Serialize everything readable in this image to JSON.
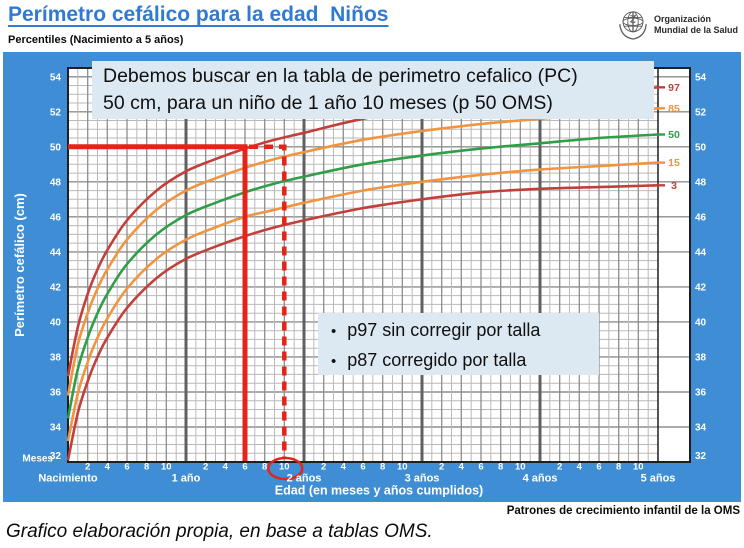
{
  "page": {
    "title": "Perímetro cefálico para la edad  Niños",
    "subtitle": "Percentiles (Nacimiento a 5 años)"
  },
  "who": {
    "line1": "Organización",
    "line2": "Mundial de la Salud"
  },
  "boxes": {
    "main": {
      "line1": "Debemos buscar en la tabla de perimetro cefalico (PC)",
      "line2": "50 cm, para un niño de 1 año 10 meses (p 50 OMS)"
    },
    "bullets": {
      "items": [
        "p97 sin corregir por talla",
        "p87 corregido por talla"
      ]
    }
  },
  "footer": {
    "right": "Patrones de crecimiento infantil de la OMS",
    "left": "Grafico elaboración propia, en base a tablas OMS."
  },
  "chart_data": {
    "type": "line",
    "title": "Perímetro cefálico para la edad - Niños - Percentiles (Nacimiento a 5 años)",
    "xlabel": "Edad (en meses y años cumplidos)",
    "ylabel": "Perímetro cefálico (cm)",
    "x_unit_label": "Meses",
    "xlim_months": [
      0,
      60
    ],
    "ylim": [
      32,
      54.5
    ],
    "y_ticks": [
      54,
      52,
      50,
      48,
      46,
      44,
      42,
      40,
      38,
      36,
      34,
      32
    ],
    "month_tick_labels": [
      2,
      4,
      6,
      8,
      10
    ],
    "year_labels": [
      "Nacimiento",
      "1 año",
      "2 años",
      "3 años",
      "4 años",
      "5 años"
    ],
    "grid": "on",
    "legend_position": "right-strip",
    "months": [
      0,
      1,
      2,
      3,
      4,
      6,
      9,
      12,
      15,
      18,
      21,
      24,
      30,
      36,
      42,
      48,
      54,
      60
    ],
    "series": [
      {
        "name": "97",
        "color": "#c2403a",
        "values": [
          36.9,
          39.7,
          41.6,
          43.0,
          44.1,
          45.8,
          47.5,
          48.6,
          49.3,
          49.9,
          50.4,
          50.8,
          51.6,
          52.1,
          52.5,
          52.8,
          53.1,
          53.4
        ]
      },
      {
        "name": "85",
        "color": "#f0943f",
        "values": [
          35.8,
          38.7,
          40.5,
          41.9,
          43.0,
          44.7,
          46.4,
          47.5,
          48.2,
          48.8,
          49.3,
          49.7,
          50.4,
          50.9,
          51.3,
          51.6,
          51.9,
          52.2
        ]
      },
      {
        "name": "50",
        "color": "#2f9e47",
        "values": [
          34.5,
          37.3,
          39.1,
          40.5,
          41.6,
          43.3,
          45.0,
          46.1,
          46.8,
          47.4,
          47.9,
          48.3,
          49.0,
          49.5,
          49.9,
          50.2,
          50.5,
          50.7
        ]
      },
      {
        "name": "15",
        "color": "#f0943f",
        "values": [
          33.2,
          35.9,
          37.7,
          39.1,
          40.2,
          41.9,
          43.6,
          44.7,
          45.4,
          46.0,
          46.4,
          46.8,
          47.5,
          48.0,
          48.4,
          48.7,
          48.9,
          49.1
        ]
      },
      {
        "name": "3",
        "color": "#c2403a",
        "values": [
          32.1,
          34.8,
          36.6,
          38.0,
          39.1,
          40.8,
          42.5,
          43.6,
          44.3,
          44.9,
          45.4,
          45.8,
          46.5,
          47.0,
          47.4,
          47.6,
          47.7,
          47.8
        ]
      }
    ],
    "annotations": {
      "hline_cm": 50,
      "solid_vline_month": 18,
      "dashed_vline_month": 22,
      "circled_tick_label": "10",
      "color": "#e32419"
    },
    "colors": {
      "band_blue": "#3f8ed5",
      "plot_background": "#ffffff",
      "grid_minor": "#b9b9b9",
      "grid_major": "#8d8d8d",
      "grid_year": "#606060",
      "border": "#1f1f1f",
      "axis_text": "#ffffff"
    }
  }
}
